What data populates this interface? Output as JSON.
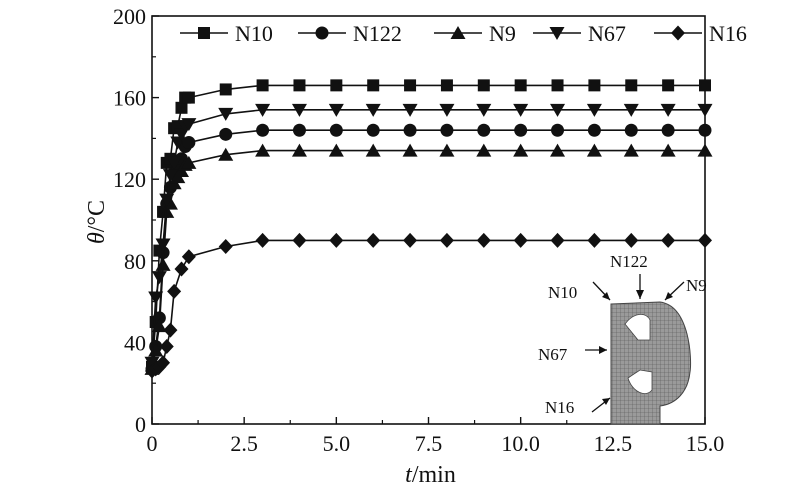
{
  "chart_data": {
    "type": "line",
    "title": "",
    "xlabel": {
      "symbol": "t",
      "unit": "/min"
    },
    "ylabel": {
      "symbol": "θ",
      "unit": "/°C"
    },
    "xlim": [
      0,
      15
    ],
    "ylim": [
      0,
      200
    ],
    "x_ticks": [
      0,
      2.5,
      5.0,
      7.5,
      10.0,
      12.5,
      15.0
    ],
    "x_tick_labels": [
      "0",
      "2.5",
      "5.0",
      "7.5",
      "10.0",
      "12.5",
      "15.0"
    ],
    "y_ticks": [
      0,
      40,
      80,
      120,
      160,
      200
    ],
    "y_tick_labels": [
      "0",
      "40",
      "80",
      "120",
      "160",
      "200"
    ],
    "grid": false,
    "legend": {
      "placement": "top",
      "orientation": "horizontal"
    },
    "series": [
      {
        "name": "N10",
        "marker": "square",
        "x": [
          0,
          0.1,
          0.2,
          0.3,
          0.4,
          0.5,
          0.6,
          0.7,
          0.8,
          0.9,
          1.0,
          2,
          3,
          4,
          5,
          6,
          7,
          8,
          9,
          10,
          11,
          12,
          13,
          14,
          15
        ],
        "y": [
          28,
          50,
          85,
          104,
          128,
          130,
          145,
          146,
          155,
          160,
          160,
          164,
          166,
          166,
          166,
          166,
          166,
          166,
          166,
          166,
          166,
          166,
          166,
          166,
          166
        ]
      },
      {
        "name": "N122",
        "marker": "circle",
        "x": [
          0,
          0.1,
          0.2,
          0.3,
          0.4,
          0.5,
          0.6,
          0.7,
          0.8,
          0.9,
          1.0,
          2,
          3,
          4,
          5,
          6,
          7,
          8,
          9,
          10,
          11,
          12,
          13,
          14,
          15
        ],
        "y": [
          27,
          38,
          52,
          84,
          108,
          116,
          123,
          125,
          130,
          136,
          138,
          142,
          144,
          144,
          144,
          144,
          144,
          144,
          144,
          144,
          144,
          144,
          144,
          144,
          144
        ]
      },
      {
        "name": "N9",
        "marker": "triangle-up",
        "x": [
          0,
          0.1,
          0.2,
          0.3,
          0.4,
          0.5,
          0.6,
          0.7,
          0.8,
          0.9,
          1.0,
          2,
          3,
          4,
          5,
          6,
          7,
          8,
          9,
          10,
          11,
          12,
          13,
          14,
          15
        ],
        "y": [
          27,
          36,
          48,
          78,
          104,
          108,
          118,
          121,
          124,
          127,
          128,
          132,
          134,
          134,
          134,
          134,
          134,
          134,
          134,
          134,
          134,
          134,
          134,
          134,
          134
        ]
      },
      {
        "name": "N67",
        "marker": "triangle-down",
        "x": [
          0,
          0.1,
          0.2,
          0.3,
          0.4,
          0.5,
          0.6,
          0.7,
          0.8,
          0.9,
          1.0,
          2,
          3,
          4,
          5,
          6,
          7,
          8,
          9,
          10,
          11,
          12,
          13,
          14,
          15
        ],
        "y": [
          30,
          62,
          72,
          88,
          110,
          122,
          128,
          138,
          142,
          146,
          147,
          152,
          154,
          154,
          154,
          154,
          154,
          154,
          154,
          154,
          154,
          154,
          154,
          154,
          154
        ]
      },
      {
        "name": "N16",
        "marker": "diamond",
        "x": [
          0,
          0.1,
          0.2,
          0.3,
          0.4,
          0.5,
          0.6,
          0.8,
          1.0,
          2,
          3,
          4,
          5,
          6,
          7,
          8,
          9,
          10,
          11,
          12,
          13,
          14,
          15
        ],
        "y": [
          26,
          27,
          28,
          30,
          38,
          46,
          65,
          76,
          82,
          87,
          90,
          90,
          90,
          90,
          90,
          90,
          90,
          90,
          90,
          90,
          90,
          90,
          90
        ]
      }
    ],
    "inset": {
      "labels": [
        "N10",
        "N122",
        "N9",
        "N67",
        "N16"
      ]
    }
  }
}
